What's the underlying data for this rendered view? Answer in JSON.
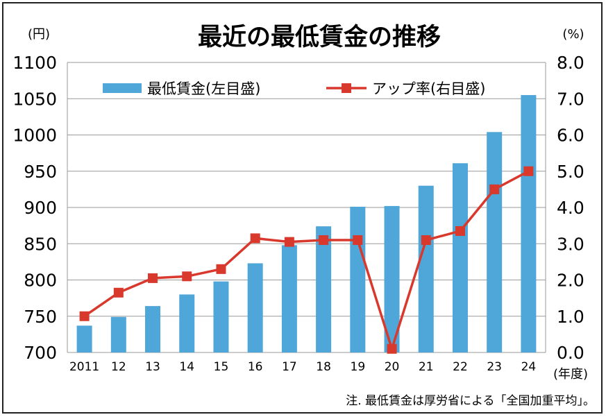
{
  "chart_data": {
    "type": "bar+line",
    "title": "最近の最低賃金の推移",
    "left_unit": "(円)",
    "right_unit": "(%)",
    "x_unit": "(年度)",
    "categories": [
      "2011",
      "12",
      "13",
      "14",
      "15",
      "16",
      "17",
      "18",
      "19",
      "20",
      "21",
      "22",
      "23",
      "24"
    ],
    "series": [
      {
        "name": "最低賃金(左目盛)",
        "type": "bar",
        "axis": "left",
        "color": "#4fa6d8",
        "values": [
          737,
          749,
          764,
          780,
          798,
          823,
          848,
          874,
          901,
          902,
          930,
          961,
          1004,
          1055
        ]
      },
      {
        "name": "アップ率(右目盛)",
        "type": "line",
        "axis": "right",
        "color": "#d9382c",
        "values": [
          1.0,
          1.65,
          2.05,
          2.1,
          2.3,
          3.15,
          3.05,
          3.1,
          3.1,
          0.1,
          3.1,
          3.35,
          4.5,
          5.0
        ]
      }
    ],
    "left_axis": {
      "min": 700,
      "max": 1100,
      "ticks": [
        "700",
        "750",
        "800",
        "850",
        "900",
        "950",
        "1000",
        "1050",
        "1100"
      ]
    },
    "right_axis": {
      "min": 0,
      "max": 8,
      "ticks": [
        "0.0",
        "1.0",
        "2.0",
        "3.0",
        "4.0",
        "5.0",
        "6.0",
        "7.0",
        "8.0"
      ]
    },
    "legend_position": "top",
    "note": "注. 最低賃金は厚労省による「全国加重平均」。"
  }
}
